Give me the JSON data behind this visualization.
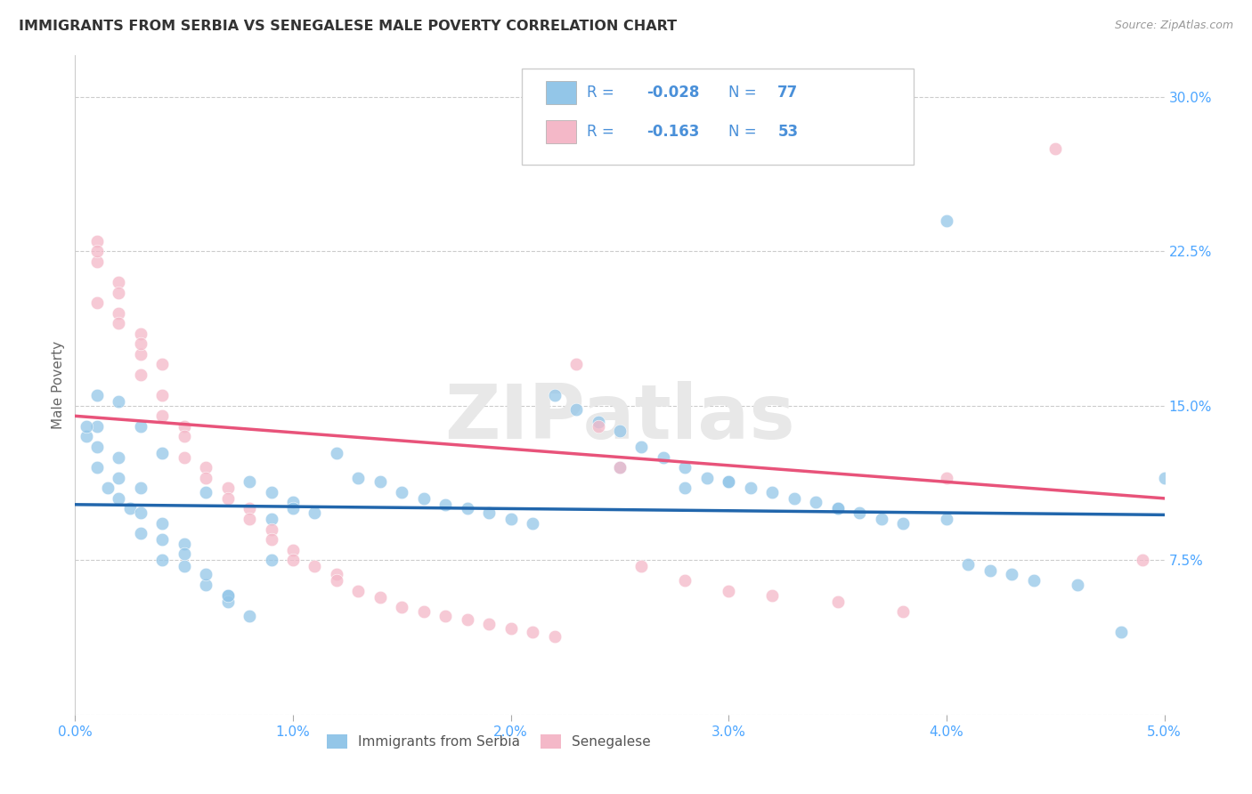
{
  "title": "IMMIGRANTS FROM SERBIA VS SENEGALESE MALE POVERTY CORRELATION CHART",
  "source": "Source: ZipAtlas.com",
  "ylabel": "Male Poverty",
  "legend_label1": "Immigrants from Serbia",
  "legend_label2": "Senegalese",
  "R1": -0.028,
  "N1": 77,
  "R2": -0.163,
  "N2": 53,
  "blue_color": "#93c6e8",
  "pink_color": "#f4b8c8",
  "blue_line_color": "#2166ac",
  "pink_line_color": "#e8537a",
  "axis_label_color": "#4da6ff",
  "legend_text_color": "#4a90d9",
  "xlim": [
    0.0,
    0.05
  ],
  "ylim": [
    0.0,
    0.32
  ],
  "xticks": [
    0.0,
    0.01,
    0.02,
    0.03,
    0.04,
    0.05
  ],
  "xtick_labels": [
    "0.0%",
    "1.0%",
    "2.0%",
    "3.0%",
    "4.0%",
    "5.0%"
  ],
  "yticks": [
    0.0,
    0.075,
    0.15,
    0.225,
    0.3
  ],
  "ytick_labels": [
    "",
    "7.5%",
    "15.0%",
    "22.5%",
    "30.0%"
  ],
  "watermark": "ZIPatlas",
  "blue_scatter_x": [
    0.0005,
    0.001,
    0.001,
    0.0015,
    0.002,
    0.002,
    0.0025,
    0.003,
    0.003,
    0.004,
    0.004,
    0.005,
    0.005,
    0.006,
    0.006,
    0.007,
    0.007,
    0.008,
    0.009,
    0.009,
    0.01,
    0.01,
    0.011,
    0.012,
    0.013,
    0.014,
    0.015,
    0.016,
    0.017,
    0.018,
    0.019,
    0.02,
    0.021,
    0.022,
    0.023,
    0.024,
    0.025,
    0.026,
    0.027,
    0.028,
    0.029,
    0.03,
    0.031,
    0.032,
    0.033,
    0.034,
    0.035,
    0.036,
    0.037,
    0.038,
    0.04,
    0.041,
    0.042,
    0.043,
    0.044,
    0.046,
    0.048,
    0.05,
    0.001,
    0.002,
    0.003,
    0.004,
    0.005,
    0.006,
    0.007,
    0.008,
    0.009,
    0.0005,
    0.001,
    0.002,
    0.003,
    0.004,
    0.03,
    0.035,
    0.025,
    0.028,
    0.04
  ],
  "blue_scatter_y": [
    0.135,
    0.13,
    0.12,
    0.11,
    0.115,
    0.105,
    0.1,
    0.098,
    0.088,
    0.093,
    0.075,
    0.083,
    0.072,
    0.063,
    0.108,
    0.058,
    0.055,
    0.113,
    0.108,
    0.095,
    0.103,
    0.1,
    0.098,
    0.127,
    0.115,
    0.113,
    0.108,
    0.105,
    0.102,
    0.1,
    0.098,
    0.095,
    0.093,
    0.155,
    0.148,
    0.142,
    0.138,
    0.13,
    0.125,
    0.12,
    0.115,
    0.113,
    0.11,
    0.108,
    0.105,
    0.103,
    0.1,
    0.098,
    0.095,
    0.093,
    0.095,
    0.073,
    0.07,
    0.068,
    0.065,
    0.063,
    0.04,
    0.115,
    0.14,
    0.125,
    0.11,
    0.085,
    0.078,
    0.068,
    0.058,
    0.048,
    0.075,
    0.14,
    0.155,
    0.152,
    0.14,
    0.127,
    0.113,
    0.1,
    0.12,
    0.11,
    0.24
  ],
  "pink_scatter_x": [
    0.001,
    0.001,
    0.001,
    0.002,
    0.002,
    0.002,
    0.003,
    0.003,
    0.003,
    0.004,
    0.004,
    0.004,
    0.005,
    0.005,
    0.005,
    0.006,
    0.006,
    0.007,
    0.007,
    0.008,
    0.008,
    0.009,
    0.009,
    0.01,
    0.01,
    0.011,
    0.012,
    0.012,
    0.013,
    0.014,
    0.015,
    0.016,
    0.017,
    0.018,
    0.019,
    0.02,
    0.021,
    0.022,
    0.023,
    0.024,
    0.025,
    0.026,
    0.028,
    0.03,
    0.032,
    0.035,
    0.038,
    0.04,
    0.045,
    0.049,
    0.001,
    0.002,
    0.003
  ],
  "pink_scatter_y": [
    0.23,
    0.22,
    0.2,
    0.21,
    0.205,
    0.195,
    0.185,
    0.175,
    0.165,
    0.17,
    0.155,
    0.145,
    0.14,
    0.135,
    0.125,
    0.12,
    0.115,
    0.11,
    0.105,
    0.1,
    0.095,
    0.09,
    0.085,
    0.08,
    0.075,
    0.072,
    0.068,
    0.065,
    0.06,
    0.057,
    0.052,
    0.05,
    0.048,
    0.046,
    0.044,
    0.042,
    0.04,
    0.038,
    0.17,
    0.14,
    0.12,
    0.072,
    0.065,
    0.06,
    0.058,
    0.055,
    0.05,
    0.115,
    0.275,
    0.075,
    0.225,
    0.19,
    0.18
  ],
  "blue_trend_x": [
    0.0,
    0.05
  ],
  "blue_trend_y": [
    0.102,
    0.097
  ],
  "pink_trend_x": [
    0.0,
    0.05
  ],
  "pink_trend_y": [
    0.145,
    0.105
  ]
}
